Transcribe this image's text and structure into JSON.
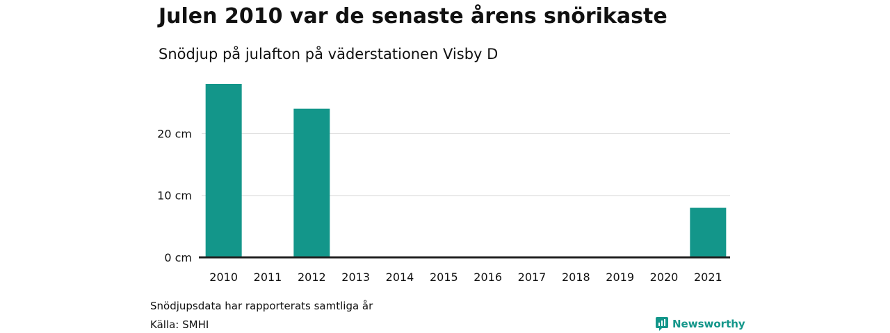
{
  "header": {
    "title": "Julen 2010 var de senaste årens snörikaste",
    "subtitle": "Snödjup på julafton på väderstationen Visby D"
  },
  "chart_data": {
    "type": "bar",
    "categories": [
      "2010",
      "2011",
      "2012",
      "2013",
      "2014",
      "2015",
      "2016",
      "2017",
      "2018",
      "2019",
      "2020",
      "2021"
    ],
    "values": [
      28,
      0,
      24,
      0,
      0,
      0,
      0,
      0,
      0,
      0,
      0,
      8
    ],
    "unit": "cm",
    "ylim": [
      0,
      30
    ],
    "yticks": [
      0,
      10,
      20
    ],
    "ytick_labels": [
      "0 cm",
      "10 cm",
      "20 cm"
    ],
    "grid": true,
    "legend": "none"
  },
  "footer": {
    "note": "Snödjupsdata har rapporterats samtliga år",
    "source": "Källa: SMHI"
  },
  "brand": {
    "name": "Newsworthy",
    "icon": "newsworthy-logo-icon"
  },
  "colors": {
    "bar": "#13968a",
    "gridline": "#dddddd",
    "baseline": "#222222",
    "brand": "#13968a"
  }
}
